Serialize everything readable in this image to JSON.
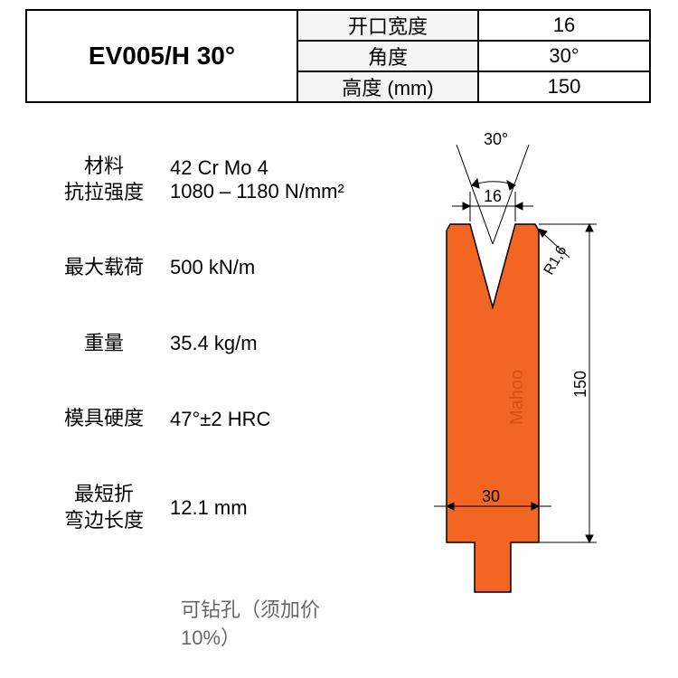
{
  "model": "EV005/H 30°",
  "header": {
    "rows": [
      {
        "label": "开口宽度",
        "value": "16"
      },
      {
        "label": "角度",
        "value": "30°"
      },
      {
        "label": "高度 (mm)",
        "value": "150"
      }
    ]
  },
  "specs": [
    {
      "label": "材料\n抗拉强度",
      "value": "42 Cr Mo 4\n1080 – 1180 N/mm²"
    },
    {
      "label": "最大载荷",
      "value": "500 kN/m"
    },
    {
      "label": "重量",
      "value": "35.4 kg/m"
    },
    {
      "label": "模具硬度",
      "value": "47°±2 HRC"
    },
    {
      "label": "最短折\n弯边长度",
      "value": "12.1 mm"
    }
  ],
  "footnote": "可钻孔（须加价\n10%）",
  "diagram": {
    "tool_color": "#f26522",
    "stroke_color": "#000000",
    "dim_angle": "30°",
    "dim_opening": "16",
    "dim_width": "30",
    "dim_height": "150",
    "dim_radius": "R1,6",
    "watermark": "Mahoo",
    "watermark_color": "#d94f0f"
  },
  "fontsize": {
    "model": 28,
    "table": 22,
    "spec": 22,
    "dim": 16
  }
}
